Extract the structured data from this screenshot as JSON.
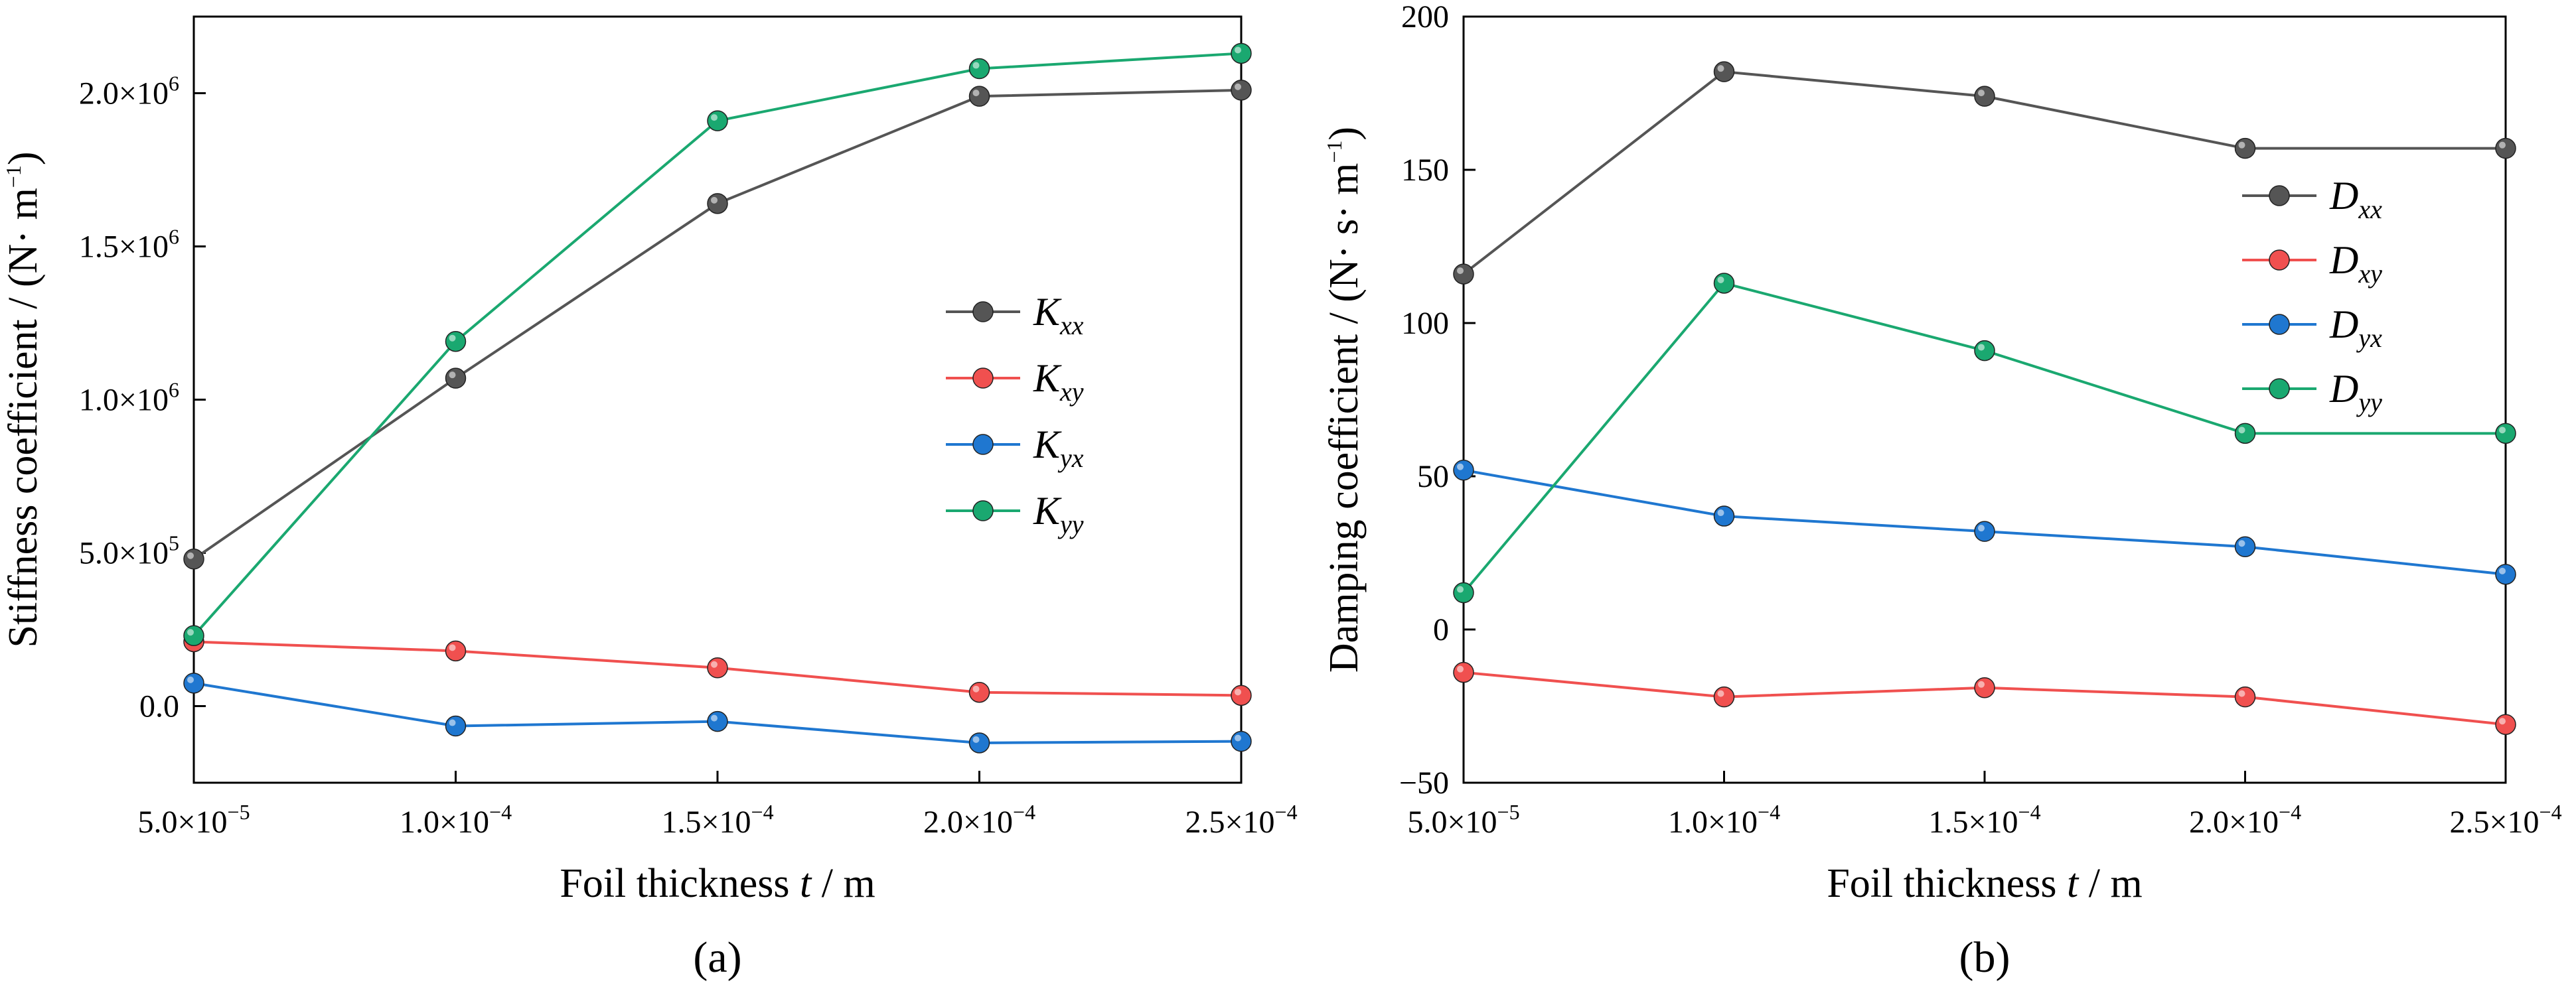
{
  "charts": [
    {
      "id": "a",
      "panel_label": "(a)",
      "xlabel": {
        "text": "Foil thickness ",
        "var": "t",
        "unit": " / m"
      },
      "ylabel": {
        "text": "Stiffness coefficient / (N· m",
        "sup": "−1",
        "end": ")"
      },
      "xticks": [
        {
          "mant": "5.0×10",
          "exp": "−5"
        },
        {
          "mant": "1.0×10",
          "exp": "−4"
        },
        {
          "mant": "1.5×10",
          "exp": "−4"
        },
        {
          "mant": "2.0×10",
          "exp": "−4"
        },
        {
          "mant": "2.5×10",
          "exp": "−4"
        }
      ],
      "yticks": [
        {
          "mant": "0.0",
          "exp": ""
        },
        {
          "mant": "5.0×10",
          "exp": "5"
        },
        {
          "mant": "1.0×10",
          "exp": "6"
        },
        {
          "mant": "1.5×10",
          "exp": "6"
        },
        {
          "mant": "2.0×10",
          "exp": "6"
        }
      ],
      "legend": [
        {
          "sym": "K",
          "sub": "xx"
        },
        {
          "sym": "K",
          "sub": "xy"
        },
        {
          "sym": "K",
          "sub": "yx"
        },
        {
          "sym": "K",
          "sub": "yy"
        }
      ]
    },
    {
      "id": "b",
      "panel_label": "(b)",
      "xlabel": {
        "text": "Foil thickness ",
        "var": "t",
        "unit": " / m"
      },
      "ylabel": {
        "text": "Damping coefficient / (N· s· m",
        "sup": "−1",
        "end": ")"
      },
      "xticks": [
        {
          "mant": "5.0×10",
          "exp": "−5"
        },
        {
          "mant": "1.0×10",
          "exp": "−4"
        },
        {
          "mant": "1.5×10",
          "exp": "−4"
        },
        {
          "mant": "2.0×10",
          "exp": "−4"
        },
        {
          "mant": "2.5×10",
          "exp": "−4"
        }
      ],
      "yticks": [
        {
          "mant": "−50",
          "exp": ""
        },
        {
          "mant": "0",
          "exp": ""
        },
        {
          "mant": "50",
          "exp": ""
        },
        {
          "mant": "100",
          "exp": ""
        },
        {
          "mant": "150",
          "exp": ""
        },
        {
          "mant": "200",
          "exp": ""
        }
      ],
      "legend": [
        {
          "sym": "D",
          "sub": "xx"
        },
        {
          "sym": "D",
          "sub": "xy"
        },
        {
          "sym": "D",
          "sub": "yx"
        },
        {
          "sym": "D",
          "sub": "yy"
        }
      ]
    }
  ],
  "chart_data": [
    {
      "type": "line",
      "x": [
        5e-05,
        0.0001,
        0.00015,
        0.0002,
        0.00025
      ],
      "xlim": [
        5e-05,
        0.00025
      ],
      "ylim": [
        -250000,
        2250000
      ],
      "series": [
        {
          "name": "Kxx",
          "color": "#555555",
          "values": [
            480000,
            1070000,
            1640000,
            1990000,
            2010000
          ]
        },
        {
          "name": "Kxy",
          "color": "#f0504f",
          "values": [
            210000,
            180000,
            125000,
            45000,
            35000
          ]
        },
        {
          "name": "Kyx",
          "color": "#1f77d0",
          "values": [
            75000,
            -65000,
            -50000,
            -120000,
            -115000
          ]
        },
        {
          "name": "Kyy",
          "color": "#1aa870",
          "values": [
            230000,
            1190000,
            1910000,
            2080000,
            2130000
          ]
        }
      ]
    },
    {
      "type": "line",
      "x": [
        5e-05,
        0.0001,
        0.00015,
        0.0002,
        0.00025
      ],
      "xlim": [
        5e-05,
        0.00025
      ],
      "ylim": [
        -50,
        200
      ],
      "series": [
        {
          "name": "Dxx",
          "color": "#555555",
          "values": [
            116,
            182,
            174,
            157,
            157
          ]
        },
        {
          "name": "Dxy",
          "color": "#f0504f",
          "values": [
            -14,
            -22,
            -19,
            -22,
            -31
          ]
        },
        {
          "name": "Dyx",
          "color": "#1f77d0",
          "values": [
            52,
            37,
            32,
            27,
            18
          ]
        },
        {
          "name": "Dyy",
          "color": "#1aa870",
          "values": [
            12,
            113,
            91,
            64,
            64
          ]
        }
      ]
    }
  ]
}
